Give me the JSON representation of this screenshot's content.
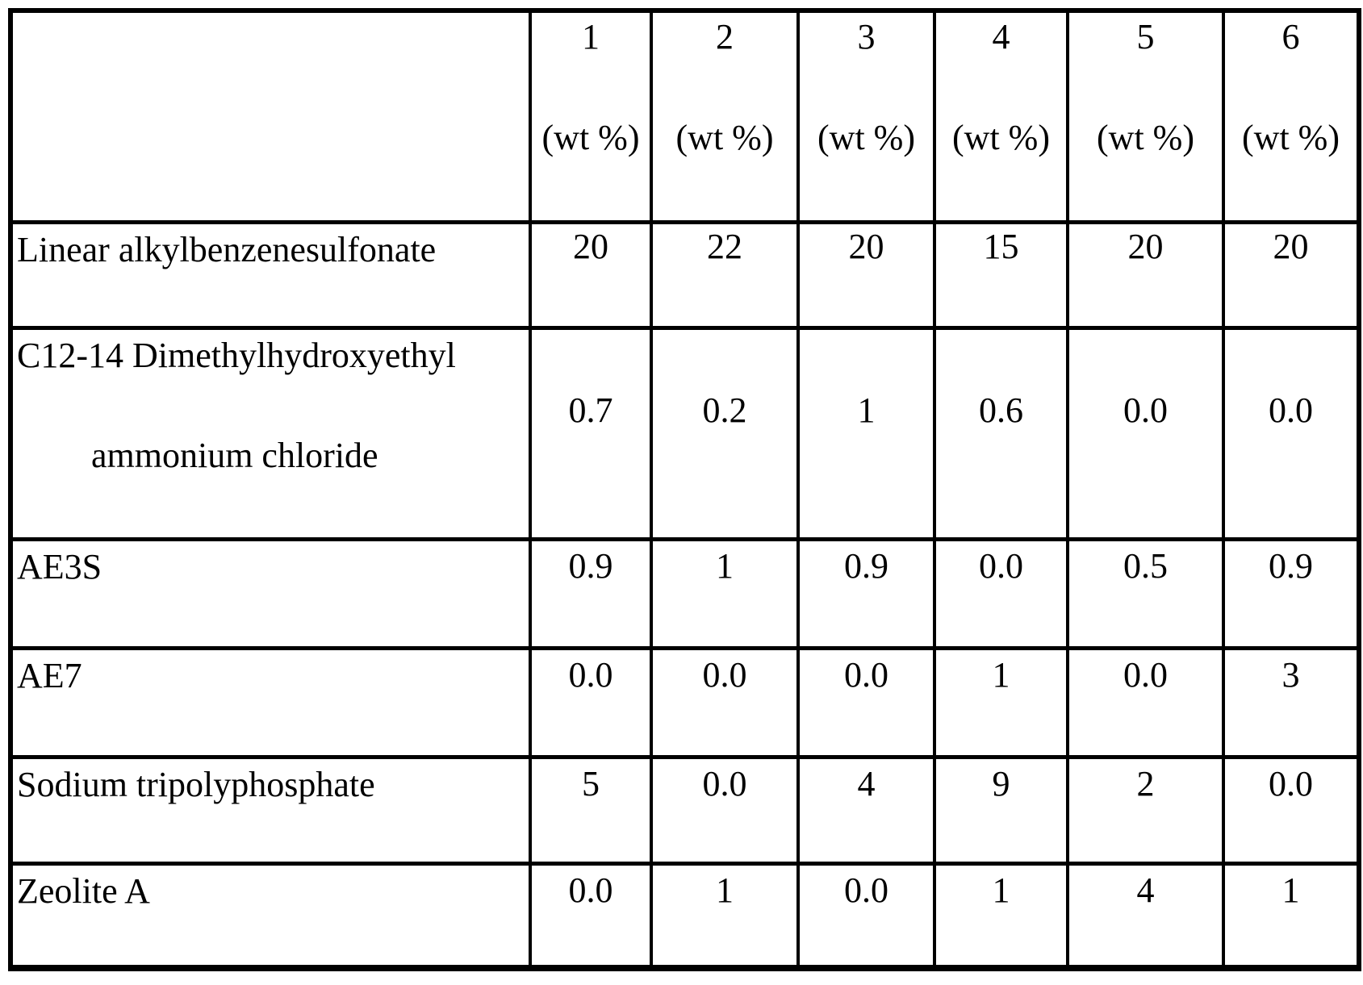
{
  "colors": {
    "border": "#000000",
    "text": "#000000",
    "background": "#ffffff"
  },
  "table": {
    "header": {
      "corner": "",
      "columns": [
        {
          "number": "1",
          "unit": "(wt %)"
        },
        {
          "number": "2",
          "unit": "(wt %)"
        },
        {
          "number": "3",
          "unit": "(wt %)"
        },
        {
          "number": "4",
          "unit": "(wt %)"
        },
        {
          "number": "5",
          "unit": "(wt %)"
        },
        {
          "number": "6",
          "unit": "(wt %)"
        }
      ]
    },
    "rows": [
      {
        "label": "Linear alkylbenzenesulfonate",
        "values": [
          "20",
          "22",
          "20",
          "15",
          "20",
          "20"
        ]
      },
      {
        "label": "C12-14 Dimethylhydroxyethyl",
        "label_line2": "ammonium chloride",
        "values": [
          "0.7",
          "0.2",
          "1",
          "0.6",
          "0.0",
          "0.0"
        ]
      },
      {
        "label": "AE3S",
        "values": [
          "0.9",
          "1",
          "0.9",
          "0.0",
          "0.5",
          "0.9"
        ]
      },
      {
        "label": "AE7",
        "values": [
          "0.0",
          "0.0",
          "0.0",
          "1",
          "0.0",
          "3"
        ]
      },
      {
        "label": "Sodium tripolyphosphate",
        "values": [
          "5",
          "0.0",
          "4",
          "9",
          "2",
          "0.0"
        ]
      },
      {
        "label": "Zeolite A",
        "values": [
          "0.0",
          "1",
          "0.0",
          "1",
          "4",
          "1"
        ]
      }
    ]
  }
}
